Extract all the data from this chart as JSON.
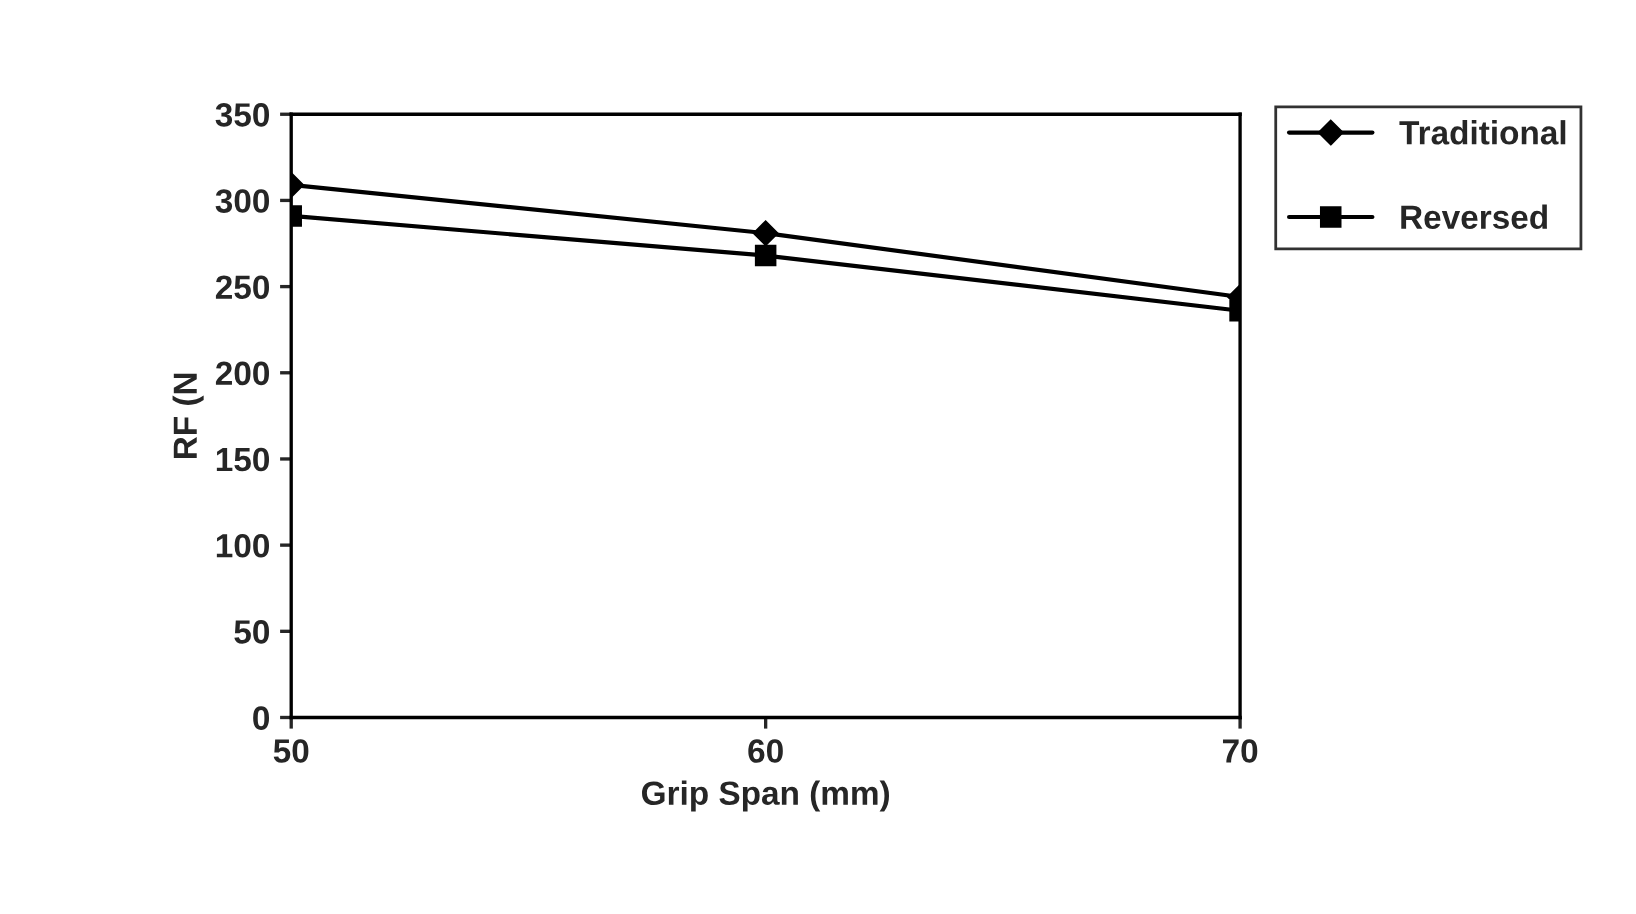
{
  "chart_data": {
    "type": "line",
    "xlabel": "Grip Span (mm)",
    "ylabel": "RF (N",
    "x": [
      50,
      60,
      70
    ],
    "xlim": [
      50,
      70
    ],
    "xticks": [
      50,
      60,
      70
    ],
    "ylim": [
      0,
      350
    ],
    "yticks": [
      0,
      50,
      100,
      150,
      200,
      250,
      300,
      350
    ],
    "series": [
      {
        "name": "Traditional",
        "color": "#000000",
        "marker": "diamond",
        "values": [
          309,
          281,
          244
        ]
      },
      {
        "name": "Reversed",
        "color": "#000000",
        "marker": "square",
        "values": [
          291,
          268,
          236
        ]
      }
    ],
    "legend": "right",
    "grid": false,
    "line_style": "solid"
  }
}
